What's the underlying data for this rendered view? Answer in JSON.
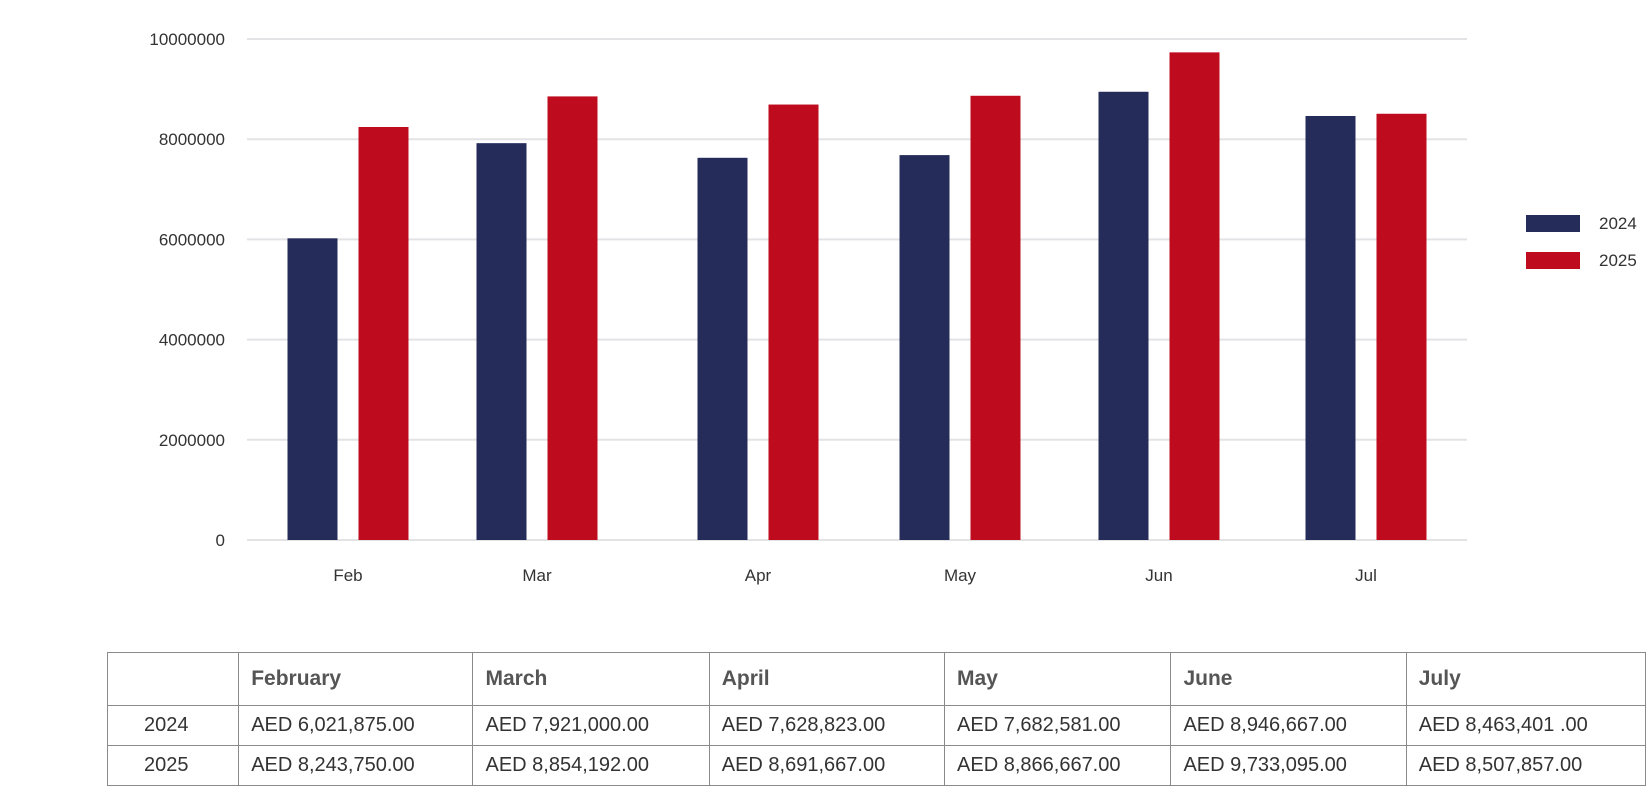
{
  "chart_data": {
    "type": "bar",
    "categories": [
      "Feb",
      "Mar",
      "Apr",
      "May",
      "Jun",
      "Jul"
    ],
    "series": [
      {
        "name": "2024",
        "color": "#252C5A",
        "values": [
          6021875,
          7921000,
          7628823,
          7682581,
          8946667,
          8463401
        ]
      },
      {
        "name": "2025",
        "color": "#BF0B1E",
        "values": [
          8243750,
          8854192,
          8691667,
          8866667,
          9733095,
          8507857
        ]
      }
    ],
    "ylim": [
      0,
      10000000
    ],
    "yticks": [
      "0",
      "2000000",
      "4000000",
      "6000000",
      "8000000",
      "10000000"
    ],
    "grid": true,
    "legend_position": "right",
    "title": "",
    "xlabel": "",
    "ylabel": ""
  },
  "table": {
    "header": [
      "",
      "February",
      "March",
      "April",
      "May",
      "June",
      "July"
    ],
    "rows": [
      {
        "year": "2024",
        "cells": [
          "AED 6,021,875.00",
          "AED 7,921,000.00",
          "AED 7,628,823.00",
          "AED 7,682,581.00",
          "AED 8,946,667.00",
          "AED 8,463,401 .00"
        ]
      },
      {
        "year": "2025",
        "cells": [
          "AED 8,243,750.00",
          "AED 8,854,192.00",
          "AED 8,691,667.00",
          "AED 8,866,667.00",
          "AED 9,733,095.00",
          "AED 8,507,857.00"
        ]
      }
    ]
  }
}
